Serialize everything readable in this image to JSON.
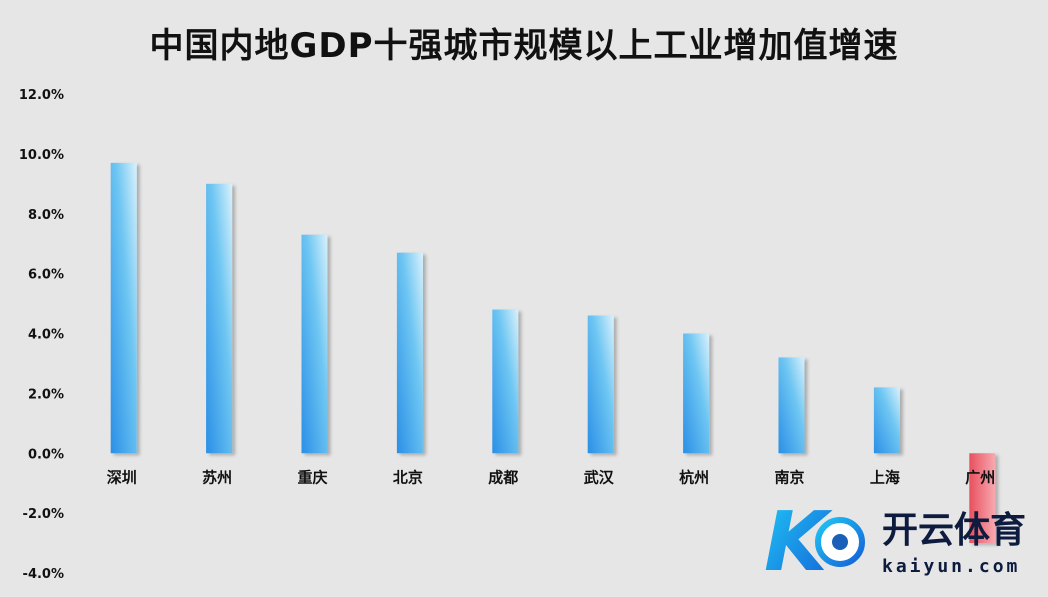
{
  "chart_data": {
    "type": "bar",
    "title": "中国内地GDP十强城市规模以上工业增加值增速",
    "categories": [
      "深圳",
      "苏州",
      "重庆",
      "北京",
      "成都",
      "武汉",
      "杭州",
      "南京",
      "上海",
      "广州"
    ],
    "values": [
      9.7,
      9.0,
      7.3,
      6.7,
      4.8,
      4.6,
      4.0,
      3.2,
      2.2,
      -3.0
    ],
    "ylim": [
      -4,
      12
    ],
    "yticks": [
      "12.0%",
      "10.0%",
      "8.0%",
      "6.0%",
      "4.0%",
      "2.0%",
      "0.0%",
      "-2.0%",
      "-4.0%"
    ],
    "ytick_values": [
      12,
      10,
      8,
      6,
      4,
      2,
      0,
      -2,
      -4
    ],
    "grid": false,
    "colors": {
      "positive": "#2f95e8",
      "negative": "#e8505e"
    }
  },
  "watermark": {
    "logo_text": "K",
    "brand_cn": "开云体育",
    "brand_en": "kaiyun.com"
  }
}
